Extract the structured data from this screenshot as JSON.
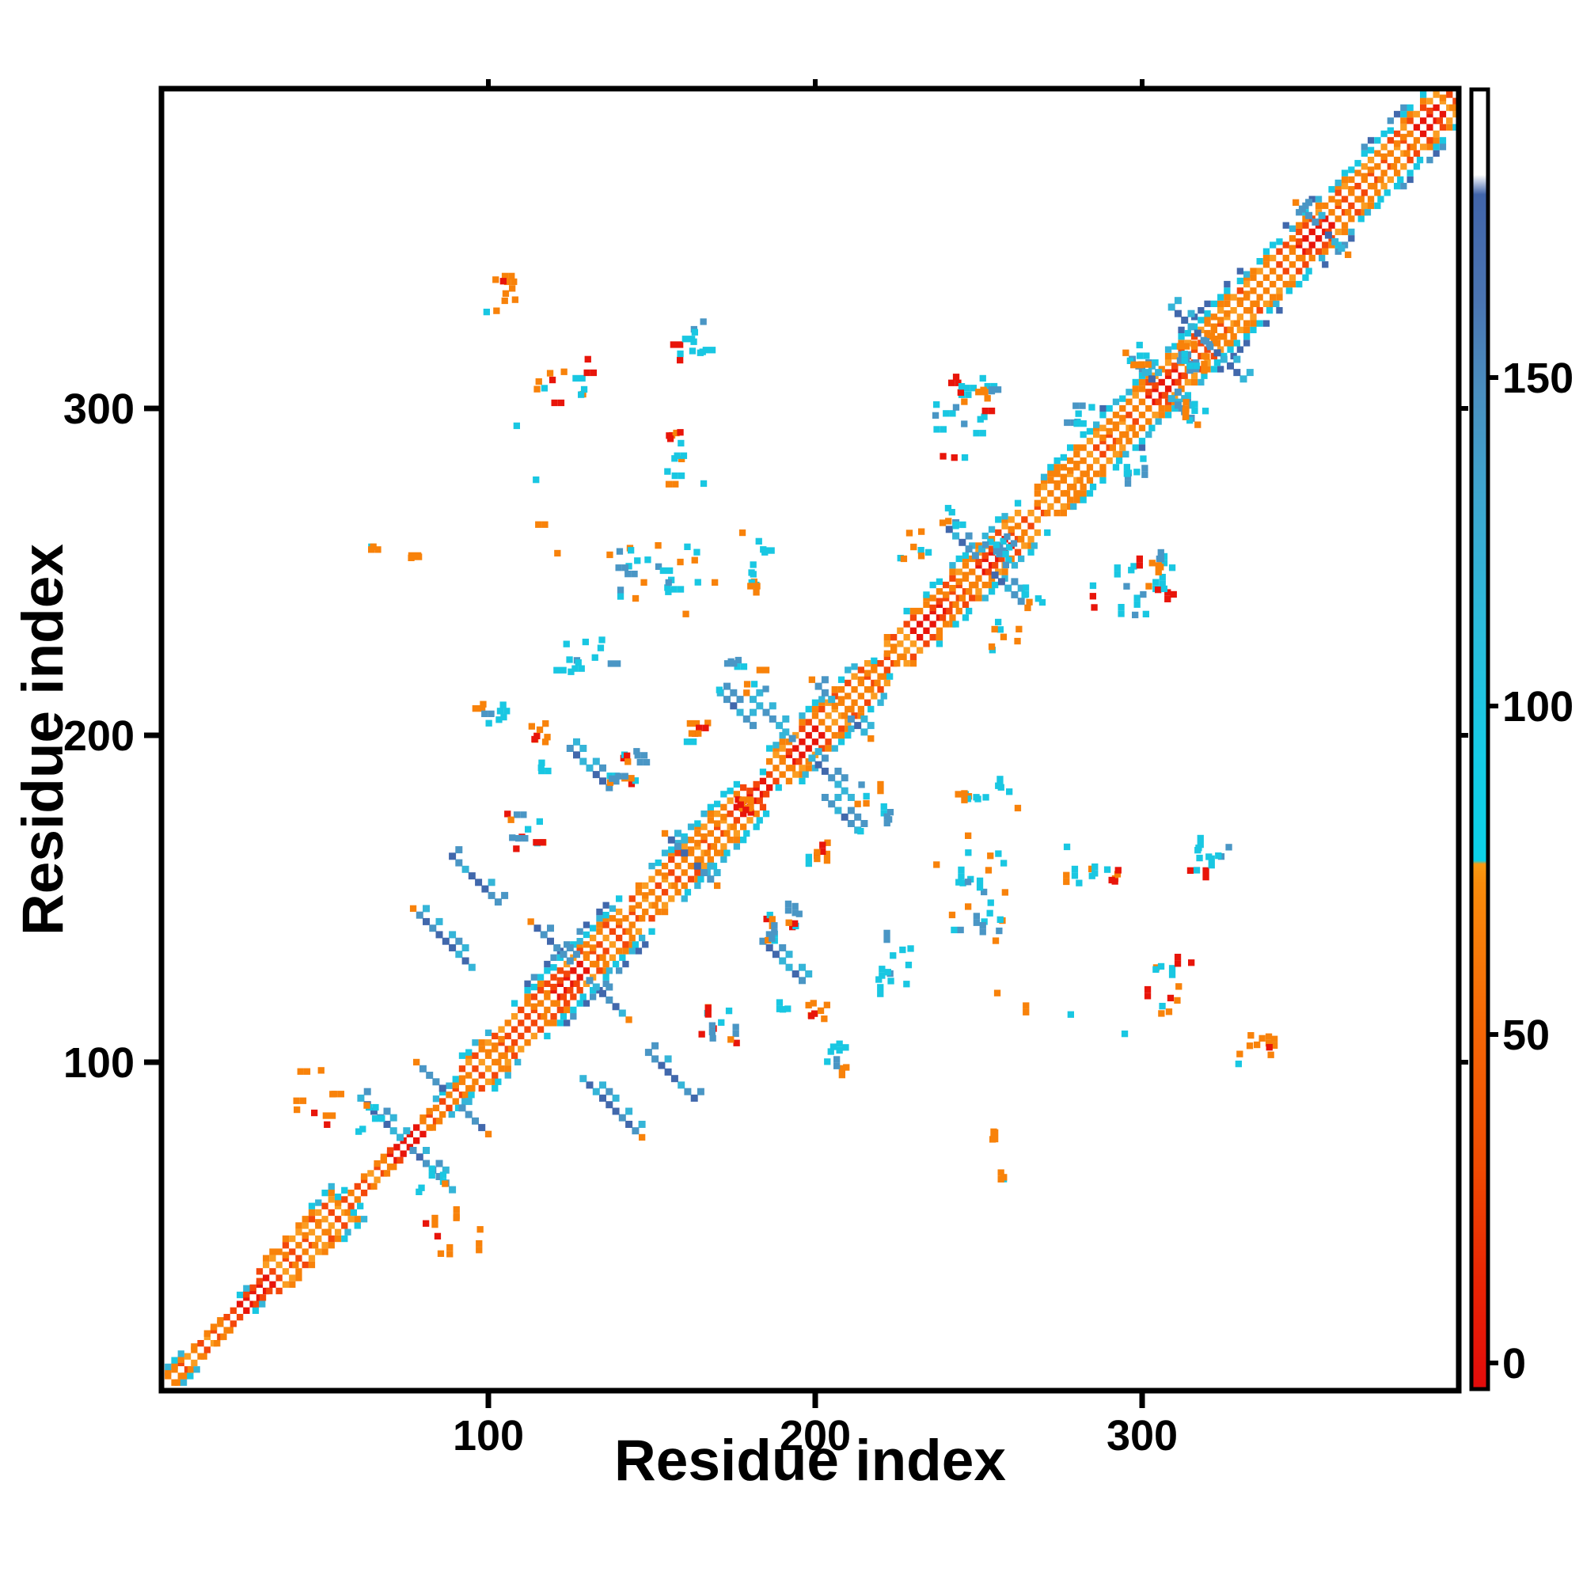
{
  "chart_data": {
    "type": "heatmap",
    "title": "",
    "xlabel": "Residue index",
    "ylabel": "Residue index",
    "xlim": [
      1,
      397
    ],
    "ylim": [
      1,
      397
    ],
    "x_ticks": [
      100,
      200,
      300
    ],
    "y_ticks": [
      100,
      200,
      300
    ],
    "grid": false,
    "legend_position": "none",
    "symmetric": true,
    "background": "#ffffff",
    "axis_color": "#000000",
    "palette": {
      "red": "#e8150a",
      "redOrange": "#f4470a",
      "orange": "#f8820a",
      "lightOrange": "#fb9d22",
      "cyan": "#19c7e2",
      "teal": "#35b5d8",
      "steel": "#4a96c5",
      "slate": "#4168ac",
      "white": "#ffffff"
    },
    "colorbar": {
      "ticks": [
        0,
        50,
        100,
        150
      ],
      "vmin": -4,
      "vmax": 194,
      "jump_value": 76,
      "stops": [
        {
          "v": -4,
          "c": "#e30b0b"
        },
        {
          "v": 12,
          "c": "#ea2404"
        },
        {
          "v": 30,
          "c": "#f04b02"
        },
        {
          "v": 52,
          "c": "#f56806"
        },
        {
          "v": 73,
          "c": "#f98c0b"
        },
        {
          "v": 76,
          "c": "#f99a12"
        },
        {
          "v": 76.5,
          "c": "#0bd2e8"
        },
        {
          "v": 92,
          "c": "#15cce6"
        },
        {
          "v": 112,
          "c": "#2bbcdc"
        },
        {
          "v": 132,
          "c": "#3ea6cf"
        },
        {
          "v": 148,
          "c": "#4a8fc0"
        },
        {
          "v": 162,
          "c": "#4a74b2"
        },
        {
          "v": 178,
          "c": "#4165aa"
        },
        {
          "v": 181,
          "c": "#ffffff"
        },
        {
          "v": 194,
          "c": "#ffffff"
        }
      ]
    },
    "diagonal": {
      "range": [
        2,
        396
      ],
      "inner_offset": 2,
      "outer_offset": 6,
      "red_segments": [
        [
          24,
          33
        ],
        [
          70,
          79
        ],
        [
          120,
          129
        ],
        [
          176,
          184
        ],
        [
          192,
          201
        ],
        [
          230,
          238
        ],
        [
          250,
          259
        ],
        [
          302,
          310
        ],
        [
          348,
          356
        ],
        [
          384,
          390
        ]
      ],
      "outer_segments": [
        [
          30,
          52
        ],
        [
          92,
          140
        ],
        [
          143,
          178
        ],
        [
          186,
          216
        ],
        [
          222,
          262
        ],
        [
          268,
          332
        ],
        [
          334,
          396
        ]
      ],
      "cyan_segments": [
        [
          1,
          7
        ],
        [
          21,
          27
        ],
        [
          45,
          57
        ],
        [
          84,
          100
        ],
        [
          108,
          140
        ],
        [
          150,
          176
        ],
        [
          184,
          202
        ],
        [
          207,
          219
        ],
        [
          226,
          262
        ],
        [
          268,
          332
        ],
        [
          336,
          396
        ]
      ],
      "blue_segments": [
        [
          112,
          136
        ],
        [
          288,
          330
        ],
        [
          344,
          360
        ],
        [
          368,
          392
        ]
      ]
    },
    "whiskers": [
      {
        "c": 75,
        "a": 14
      },
      {
        "c": 89,
        "a": 9
      },
      {
        "c": 128,
        "a": 13
      },
      {
        "c": 162,
        "a": 6
      },
      {
        "c": 196,
        "a": 15
      },
      {
        "c": 208,
        "a": 7
      },
      {
        "c": 252,
        "a": 11
      },
      {
        "c": 306,
        "a": 9
      },
      {
        "c": 355,
        "a": 6
      }
    ],
    "segments": [
      {
        "x": 87,
        "y": 137,
        "a": 8
      },
      {
        "x": 96,
        "y": 156,
        "a": 7
      },
      {
        "x": 131,
        "y": 190,
        "a": 6
      },
      {
        "x": 176,
        "y": 208,
        "a": 5
      },
      {
        "x": 313,
        "y": 327,
        "a": 4
      }
    ],
    "clusters": [
      {
        "x": 99,
        "y": 327,
        "w": 10,
        "h": 16,
        "n": 10,
        "mix": [
          "orange",
          "orange",
          "red",
          "cyan"
        ]
      },
      {
        "x": 113,
        "y": 300,
        "w": 18,
        "h": 20,
        "n": 13,
        "mix": [
          "orange",
          "cyan",
          "red",
          "orange"
        ]
      },
      {
        "x": 153,
        "y": 276,
        "w": 7,
        "h": 18,
        "n": 8,
        "mix": [
          "cyan",
          "orange",
          "cyan"
        ]
      },
      {
        "x": 155,
        "y": 288,
        "w": 4,
        "h": 5,
        "n": 4,
        "mix": [
          "red",
          "cyan"
        ]
      },
      {
        "x": 112,
        "y": 197,
        "w": 7,
        "h": 8,
        "n": 8,
        "mix": [
          "orange",
          "orange",
          "red"
        ]
      },
      {
        "x": 96,
        "y": 203,
        "w": 10,
        "h": 9,
        "n": 8,
        "mix": [
          "steel",
          "cyan",
          "orange"
        ]
      },
      {
        "x": 104,
        "y": 165,
        "w": 14,
        "h": 16,
        "n": 12,
        "mix": [
          "cyan",
          "steel",
          "orange",
          "red"
        ]
      },
      {
        "x": 113,
        "y": 188,
        "w": 5,
        "h": 5,
        "n": 3,
        "mix": [
          "cyan",
          "orange"
        ]
      },
      {
        "x": 137,
        "y": 185,
        "w": 11,
        "h": 11,
        "n": 14,
        "mix": [
          "steel",
          "steel",
          "cyan",
          "orange",
          "red"
        ]
      },
      {
        "x": 160,
        "y": 197,
        "w": 8,
        "h": 7,
        "n": 6,
        "mix": [
          "red",
          "orange",
          "cyan"
        ]
      },
      {
        "x": 139,
        "y": 240,
        "w": 32,
        "h": 18,
        "n": 22,
        "mix": [
          "cyan",
          "steel",
          "cyan",
          "orange"
        ]
      },
      {
        "x": 116,
        "y": 219,
        "w": 22,
        "h": 13,
        "n": 12,
        "mix": [
          "cyan",
          "steel",
          "orange"
        ]
      },
      {
        "x": 170,
        "y": 213,
        "w": 16,
        "h": 11,
        "n": 9,
        "mix": [
          "cyan",
          "orange",
          "steel"
        ]
      },
      {
        "x": 178,
        "y": 240,
        "w": 6,
        "h": 15,
        "n": 8,
        "mix": [
          "orange",
          "cyan"
        ]
      },
      {
        "x": 236,
        "y": 284,
        "w": 18,
        "h": 26,
        "n": 24,
        "mix": [
          "cyan",
          "cyan",
          "orange",
          "steel",
          "red"
        ]
      },
      {
        "x": 226,
        "y": 254,
        "w": 9,
        "h": 9,
        "n": 8,
        "mix": [
          "orange",
          "cyan"
        ]
      },
      {
        "x": 277,
        "y": 294,
        "w": 9,
        "h": 7,
        "n": 6,
        "mix": [
          "cyan",
          "cyan",
          "steel"
        ]
      },
      {
        "x": 295,
        "y": 313,
        "w": 7,
        "h": 7,
        "n": 6,
        "mix": [
          "cyan",
          "orange"
        ]
      },
      {
        "x": 311,
        "y": 312,
        "w": 11,
        "h": 11,
        "n": 9,
        "mix": [
          "cyan",
          "orange",
          "steel"
        ]
      },
      {
        "x": 37,
        "y": 80,
        "w": 18,
        "h": 18,
        "n": 9,
        "mix": [
          "orange",
          "red",
          "orange"
        ]
      },
      {
        "x": 60,
        "y": 78,
        "w": 9,
        "h": 9,
        "n": 5,
        "mix": [
          "orange",
          "cyan"
        ]
      },
      {
        "x": 64,
        "y": 243,
        "w": 14,
        "h": 15,
        "n": 6,
        "mix": [
          "cyan",
          "orange"
        ]
      },
      {
        "x": 156,
        "y": 312,
        "w": 12,
        "h": 10,
        "n": 7,
        "mix": [
          "cyan",
          "orange",
          "red"
        ]
      },
      {
        "x": 160,
        "y": 320,
        "w": 8,
        "h": 8,
        "n": 5,
        "mix": [
          "cyan",
          "steel"
        ]
      },
      {
        "x": 180,
        "y": 254,
        "w": 6,
        "h": 6,
        "n": 4,
        "mix": [
          "cyan",
          "orange"
        ]
      },
      {
        "x": 240,
        "y": 264,
        "w": 8,
        "h": 8,
        "n": 5,
        "mix": [
          "cyan",
          "orange"
        ]
      },
      {
        "x": 246,
        "y": 300,
        "w": 8,
        "h": 6,
        "n": 4,
        "mix": [
          "orange",
          "red"
        ]
      },
      {
        "x": 176,
        "y": 176,
        "w": 5,
        "h": 5,
        "n": 4,
        "mix": [
          "red",
          "red",
          "orange"
        ]
      },
      {
        "x": 252,
        "y": 256,
        "w": 7,
        "h": 7,
        "n": 7,
        "mix": [
          "cyan",
          "cyan",
          "steel"
        ]
      },
      {
        "x": 105,
        "y": 250,
        "w": 60,
        "h": 60,
        "n": 6,
        "mix": [
          "cyan",
          "orange"
        ]
      },
      {
        "x": 230,
        "y": 140,
        "w": 60,
        "h": 50,
        "n": 6,
        "mix": [
          "cyan",
          "orange"
        ]
      }
    ]
  }
}
